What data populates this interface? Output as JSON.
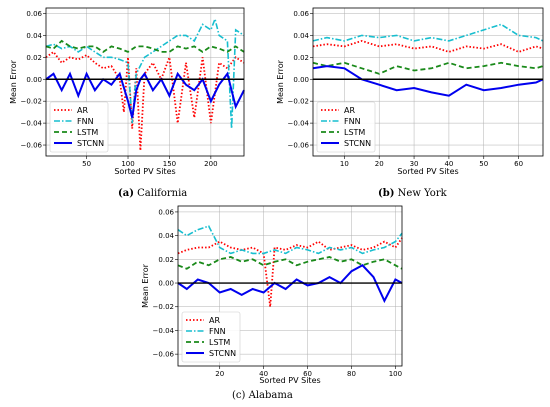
{
  "figure": {
    "captions": [
      {
        "letter": "(a)",
        "text": "California"
      },
      {
        "letter": "(b)",
        "text": "New York"
      },
      {
        "letter": "(c)",
        "text": "Alabama"
      }
    ]
  },
  "colors": {
    "AR": "#ff0000",
    "FNN": "#17becf",
    "LSTM": "#1a8a1a",
    "STCNN": "#0000ee"
  },
  "chart_data": [
    {
      "type": "line",
      "panel": "(a) California",
      "xlabel": "Sorted PV Sites",
      "ylabel": "Mean Error",
      "xlim": [
        1,
        240
      ],
      "ylim": [
        -0.07,
        0.065
      ],
      "xticks": [
        50,
        100,
        150,
        200
      ],
      "yticks": [
        -0.06,
        -0.04,
        -0.02,
        0.0,
        0.02,
        0.04,
        0.06
      ],
      "ytick_labels": [
        "−0.06",
        "−0.04",
        "−0.02",
        "0.00",
        "0.02",
        "0.04",
        "0.06"
      ],
      "legend": "lower-left",
      "reference_line": 0.0,
      "series": [
        {
          "name": "AR",
          "style": "dotted",
          "x": [
            1,
            10,
            20,
            30,
            40,
            50,
            60,
            70,
            80,
            90,
            95,
            100,
            105,
            110,
            115,
            120,
            125,
            130,
            140,
            150,
            160,
            170,
            180,
            190,
            200,
            210,
            220,
            230,
            240
          ],
          "values": [
            0.02,
            0.025,
            0.015,
            0.02,
            0.018,
            0.022,
            0.015,
            0.01,
            0.012,
            0.0,
            -0.03,
            0.02,
            -0.045,
            0.01,
            -0.065,
            0.005,
            0.01,
            0.015,
            0.0,
            0.02,
            -0.04,
            0.015,
            -0.035,
            0.02,
            -0.04,
            0.015,
            0.01,
            0.02,
            0.015
          ]
        },
        {
          "name": "FNN",
          "style": "dashdot",
          "x": [
            1,
            10,
            20,
            30,
            40,
            50,
            60,
            70,
            80,
            90,
            100,
            105,
            110,
            120,
            130,
            140,
            150,
            160,
            170,
            180,
            190,
            200,
            205,
            210,
            220,
            225,
            230,
            240
          ],
          "values": [
            0.03,
            0.032,
            0.028,
            0.03,
            0.025,
            0.03,
            0.025,
            0.02,
            0.02,
            0.018,
            0.015,
            -0.04,
            0.005,
            0.02,
            0.025,
            0.03,
            0.035,
            0.04,
            0.04,
            0.035,
            0.05,
            0.045,
            0.055,
            0.04,
            0.035,
            -0.045,
            0.045,
            0.04
          ]
        },
        {
          "name": "LSTM",
          "style": "dashed",
          "x": [
            1,
            10,
            20,
            30,
            40,
            50,
            60,
            70,
            80,
            90,
            100,
            110,
            120,
            130,
            140,
            150,
            160,
            170,
            180,
            190,
            200,
            210,
            220,
            230,
            240
          ],
          "values": [
            0.03,
            0.028,
            0.035,
            0.03,
            0.028,
            0.03,
            0.03,
            0.025,
            0.03,
            0.028,
            0.025,
            0.03,
            0.03,
            0.028,
            0.025,
            0.025,
            0.03,
            0.028,
            0.03,
            0.025,
            0.03,
            0.028,
            0.025,
            0.03,
            0.025
          ]
        },
        {
          "name": "STCNN",
          "style": "solid",
          "x": [
            1,
            10,
            20,
            30,
            40,
            50,
            60,
            70,
            80,
            90,
            100,
            105,
            110,
            115,
            120,
            130,
            140,
            150,
            160,
            170,
            180,
            190,
            200,
            210,
            220,
            230,
            240
          ],
          "values": [
            0.0,
            0.005,
            -0.01,
            0.005,
            -0.015,
            0.005,
            -0.01,
            0.0,
            -0.005,
            0.005,
            -0.02,
            -0.035,
            -0.01,
            0.0,
            0.005,
            -0.01,
            0.0,
            -0.015,
            0.005,
            -0.005,
            -0.01,
            0.0,
            -0.02,
            -0.005,
            0.005,
            -0.025,
            -0.01
          ]
        }
      ]
    },
    {
      "type": "line",
      "panel": "(b) New York",
      "xlabel": "Sorted PV Sites",
      "ylabel": "Mean Error",
      "xlim": [
        1,
        67
      ],
      "ylim": [
        -0.07,
        0.065
      ],
      "xticks": [
        10,
        20,
        30,
        40,
        50,
        60
      ],
      "yticks": [
        -0.06,
        -0.04,
        -0.02,
        0.0,
        0.02,
        0.04,
        0.06
      ],
      "ytick_labels": [
        "−0.06",
        "−0.04",
        "−0.02",
        "0.00",
        "0.02",
        "0.04",
        "0.06"
      ],
      "legend": "lower-left",
      "reference_line": 0.0,
      "series": [
        {
          "name": "AR",
          "style": "dotted",
          "x": [
            1,
            5,
            10,
            15,
            20,
            25,
            30,
            35,
            40,
            45,
            50,
            55,
            60,
            65,
            67
          ],
          "values": [
            0.03,
            0.032,
            0.03,
            0.035,
            0.03,
            0.032,
            0.028,
            0.03,
            0.025,
            0.03,
            0.028,
            0.032,
            0.025,
            0.03,
            0.028
          ]
        },
        {
          "name": "FNN",
          "style": "dashdot",
          "x": [
            1,
            5,
            10,
            15,
            20,
            25,
            30,
            35,
            40,
            45,
            50,
            55,
            60,
            65,
            67
          ],
          "values": [
            0.035,
            0.038,
            0.035,
            0.04,
            0.038,
            0.04,
            0.035,
            0.038,
            0.035,
            0.04,
            0.045,
            0.05,
            0.04,
            0.038,
            0.035
          ]
        },
        {
          "name": "LSTM",
          "style": "dashed",
          "x": [
            1,
            5,
            10,
            15,
            20,
            25,
            30,
            35,
            40,
            45,
            50,
            55,
            60,
            65,
            67
          ],
          "values": [
            0.015,
            0.012,
            0.015,
            0.01,
            0.005,
            0.012,
            0.008,
            0.01,
            0.015,
            0.01,
            0.012,
            0.015,
            0.012,
            0.01,
            0.012
          ]
        },
        {
          "name": "STCNN",
          "style": "solid",
          "x": [
            1,
            5,
            10,
            15,
            20,
            25,
            30,
            35,
            40,
            45,
            50,
            55,
            60,
            65,
            67
          ],
          "values": [
            0.01,
            0.012,
            0.01,
            0.0,
            -0.005,
            -0.01,
            -0.008,
            -0.012,
            -0.015,
            -0.005,
            -0.01,
            -0.008,
            -0.005,
            -0.003,
            0.0
          ]
        }
      ]
    },
    {
      "type": "line",
      "panel": "(c) Alabama",
      "xlabel": "Sorted PV Sites",
      "ylabel": "Mean Error",
      "xlim": [
        1,
        103
      ],
      "ylim": [
        -0.07,
        0.065
      ],
      "xticks": [
        20,
        40,
        60,
        80,
        100
      ],
      "yticks": [
        -0.06,
        -0.04,
        -0.02,
        0.0,
        0.02,
        0.04,
        0.06
      ],
      "ytick_labels": [
        "−0.06",
        "−0.04",
        "−0.02",
        "0.00",
        "0.02",
        "0.04",
        "0.06"
      ],
      "legend": "lower-left",
      "reference_line": 0.0,
      "series": [
        {
          "name": "AR",
          "style": "dotted",
          "x": [
            1,
            5,
            10,
            15,
            20,
            25,
            30,
            35,
            40,
            43,
            45,
            50,
            55,
            60,
            65,
            70,
            75,
            80,
            85,
            90,
            95,
            100,
            103
          ],
          "values": [
            0.025,
            0.028,
            0.03,
            0.03,
            0.035,
            0.03,
            0.028,
            0.03,
            0.025,
            -0.02,
            0.03,
            0.028,
            0.032,
            0.03,
            0.035,
            0.028,
            0.03,
            0.032,
            0.028,
            0.03,
            0.035,
            0.03,
            0.038
          ]
        },
        {
          "name": "FNN",
          "style": "dashdot",
          "x": [
            1,
            5,
            10,
            15,
            20,
            25,
            30,
            35,
            40,
            45,
            50,
            55,
            60,
            65,
            70,
            75,
            80,
            85,
            90,
            95,
            100,
            103
          ],
          "values": [
            0.045,
            0.04,
            0.045,
            0.048,
            0.03,
            0.025,
            0.028,
            0.025,
            0.025,
            0.028,
            0.025,
            0.03,
            0.028,
            0.025,
            0.03,
            0.028,
            0.03,
            0.025,
            0.028,
            0.03,
            0.035,
            0.042
          ]
        },
        {
          "name": "LSTM",
          "style": "dashed",
          "x": [
            1,
            5,
            10,
            15,
            20,
            25,
            30,
            35,
            40,
            45,
            50,
            55,
            60,
            65,
            70,
            75,
            80,
            85,
            90,
            95,
            100,
            103
          ],
          "values": [
            0.015,
            0.012,
            0.018,
            0.015,
            0.02,
            0.022,
            0.018,
            0.02,
            0.015,
            0.018,
            0.02,
            0.015,
            0.018,
            0.02,
            0.022,
            0.018,
            0.02,
            0.015,
            0.018,
            0.02,
            0.015,
            0.012
          ]
        },
        {
          "name": "STCNN",
          "style": "solid",
          "x": [
            1,
            5,
            10,
            15,
            20,
            25,
            30,
            35,
            40,
            45,
            50,
            55,
            60,
            65,
            70,
            75,
            80,
            85,
            90,
            95,
            100,
            103
          ],
          "values": [
            0.0,
            -0.005,
            0.003,
            0.0,
            -0.008,
            -0.005,
            -0.01,
            -0.005,
            -0.008,
            0.0,
            -0.005,
            0.003,
            -0.002,
            0.0,
            0.005,
            0.0,
            0.01,
            0.015,
            0.005,
            -0.015,
            0.003,
            0.0
          ]
        }
      ]
    }
  ]
}
